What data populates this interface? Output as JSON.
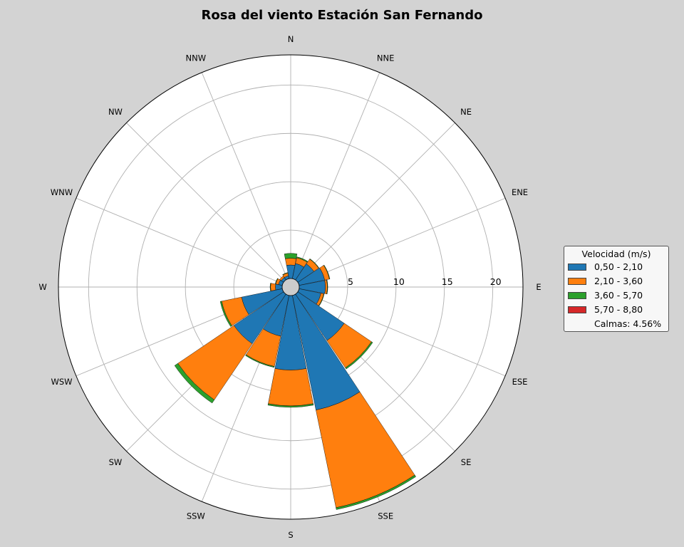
{
  "chart_data": {
    "type": "windrose",
    "title": "Rosa del viento Estación San Fernando",
    "directions": [
      "N",
      "NNE",
      "NE",
      "ENE",
      "E",
      "ESE",
      "SE",
      "SSE",
      "S",
      "SSW",
      "SW",
      "WSW",
      "W",
      "WNW",
      "NW",
      "NNW"
    ],
    "radial_ticks": [
      5,
      10,
      15,
      20
    ],
    "rlim": [
      0,
      24
    ],
    "legend_title": "Velocidad (m/s)",
    "legend_position": "right",
    "calms_label": "Calmas: 4.56%",
    "series": [
      {
        "name": "0,50 - 2,10",
        "color": "#1f77b4",
        "values": [
          1.4,
          1.6,
          2.0,
          2.7,
          2.7,
          2.3,
          5.8,
          12.1,
          7.7,
          4.3,
          6.2,
          4.3,
          0.7,
          0.4,
          0.3,
          0.3
        ]
      },
      {
        "name": "2,10 - 3,60",
        "color": "#ff7f0e",
        "values": [
          0.7,
          0.6,
          0.6,
          0.5,
          0.2,
          0.3,
          3.4,
          10.3,
          3.7,
          3.2,
          7.0,
          2.1,
          0.5,
          0.3,
          0.2,
          0.3
        ]
      },
      {
        "name": "3,60 - 5,70",
        "color": "#2ca02c",
        "values": [
          0.5,
          0.1,
          0.05,
          0.05,
          0.05,
          0.05,
          0.15,
          0.2,
          0.15,
          0.1,
          0.4,
          0.15,
          0.05,
          0.05,
          0.0,
          0.05
        ]
      },
      {
        "name": "5,70 - 8,80",
        "color": "#d62728",
        "values": [
          0,
          0,
          0,
          0,
          0,
          0,
          0,
          0,
          0,
          0,
          0,
          0,
          0,
          0,
          0,
          0
        ]
      }
    ]
  }
}
